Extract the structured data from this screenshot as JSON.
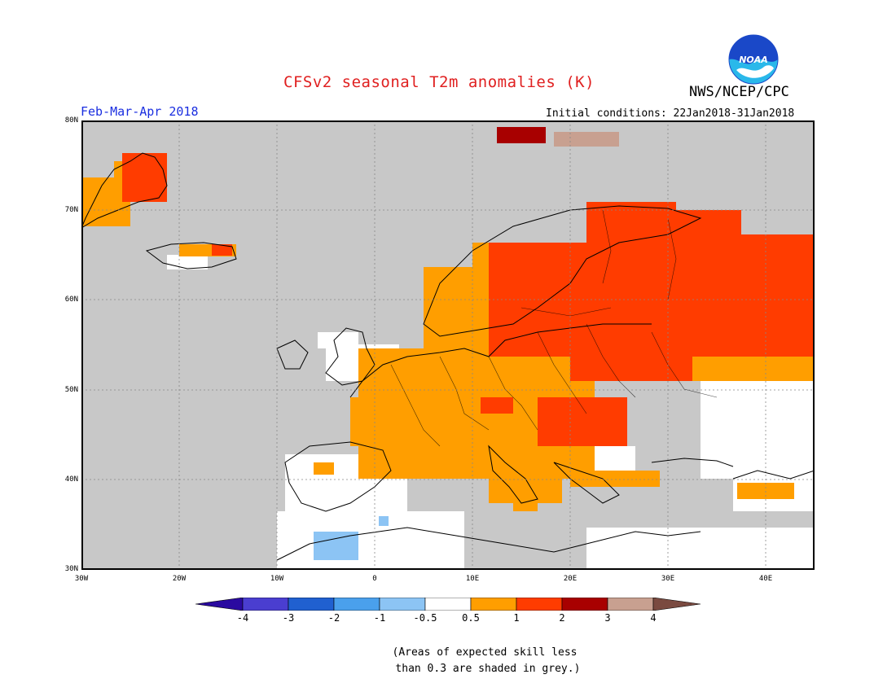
{
  "title": "CFSv2 seasonal T2m anomalies (K)",
  "agency": "NWS/NCEP/CPC",
  "logo_text": "NOAA",
  "period": "Feb-Mar-Apr 2018",
  "initial_conditions": "Initial conditions: 22Jan2018-31Jan2018",
  "lat_labels": [
    "80N",
    "70N",
    "60N",
    "50N",
    "40N",
    "30N"
  ],
  "lon_labels": [
    "30W",
    "20W",
    "10W",
    "0",
    "10E",
    "20E",
    "30E",
    "40E"
  ],
  "colorbar": {
    "ticks": [
      "-4",
      "-3",
      "-2",
      "-1",
      "-0.5",
      "0.5",
      "1",
      "2",
      "3",
      "4"
    ],
    "colors": [
      "#2a0aa0",
      "#4a3ed0",
      "#2060d0",
      "#4aa0ec",
      "#8cc4f4",
      "#ffffff",
      "#ff9e00",
      "#ff3c00",
      "#a80000",
      "#c8a090",
      "#7a4a40"
    ]
  },
  "note": "(Areas of expected skill less\n than 0.3 are shaded in grey.)",
  "legend_values": {
    "grey": "skill < 0.3",
    "white": "-0.5 to 0.5",
    "orange": "0.5 to 1",
    "red": "1 to 2",
    "darkred": "2 to 3",
    "lightblue": "-1 to -0.5"
  }
}
